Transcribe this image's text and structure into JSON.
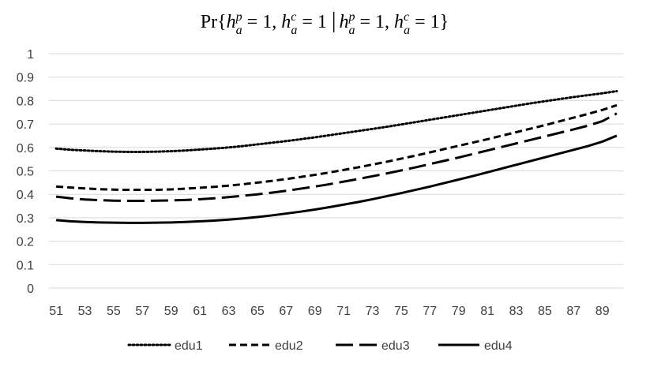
{
  "chart_data": {
    "type": "line",
    "title": "Pr{h_a^p = 1, h_a^c = 1 | h_a^p = 1, h_a^c = 1}",
    "title_parts": {
      "open": "Pr{",
      "h": "h",
      "a": "a",
      "p": "p",
      "c": "c",
      "eq1": " = 1, ",
      "eq2": " = 1 ",
      "bar": "|",
      "eq3": " = 1, ",
      "eq4": " = 1}"
    },
    "xlabel": "",
    "ylabel": "",
    "ylim": [
      0,
      1
    ],
    "y_ticks": [
      "0",
      "0.1",
      "0.2",
      "0.3",
      "0.4",
      "0.5",
      "0.6",
      "0.7",
      "0.8",
      "0.9",
      "1"
    ],
    "x": [
      51,
      52,
      53,
      54,
      55,
      56,
      57,
      58,
      59,
      60,
      61,
      62,
      63,
      64,
      65,
      66,
      67,
      68,
      69,
      70,
      71,
      72,
      73,
      74,
      75,
      76,
      77,
      78,
      79,
      80,
      81,
      82,
      83,
      84,
      85,
      86,
      87,
      88,
      89,
      90
    ],
    "x_tick_labels": [
      "51",
      "53",
      "55",
      "57",
      "59",
      "61",
      "63",
      "65",
      "67",
      "69",
      "71",
      "73",
      "75",
      "77",
      "79",
      "81",
      "83",
      "85",
      "87",
      "89"
    ],
    "grid": "horizontal",
    "legend_position": "bottom",
    "series": [
      {
        "name": "edu1",
        "style": "dotted",
        "color": "#000000",
        "values": [
          0.595,
          0.59,
          0.587,
          0.584,
          0.582,
          0.581,
          0.581,
          0.582,
          0.584,
          0.587,
          0.591,
          0.595,
          0.6,
          0.606,
          0.613,
          0.62,
          0.627,
          0.635,
          0.643,
          0.652,
          0.661,
          0.67,
          0.679,
          0.688,
          0.698,
          0.708,
          0.718,
          0.728,
          0.738,
          0.748,
          0.758,
          0.768,
          0.778,
          0.788,
          0.797,
          0.806,
          0.815,
          0.823,
          0.831,
          0.84
        ]
      },
      {
        "name": "edu2",
        "style": "short-dash",
        "color": "#000000",
        "values": [
          0.433,
          0.429,
          0.425,
          0.422,
          0.42,
          0.419,
          0.419,
          0.419,
          0.421,
          0.424,
          0.428,
          0.432,
          0.437,
          0.443,
          0.45,
          0.457,
          0.465,
          0.474,
          0.483,
          0.493,
          0.504,
          0.515,
          0.527,
          0.539,
          0.552,
          0.565,
          0.579,
          0.593,
          0.607,
          0.621,
          0.635,
          0.65,
          0.665,
          0.68,
          0.695,
          0.711,
          0.727,
          0.743,
          0.76,
          0.78
        ]
      },
      {
        "name": "edu3",
        "style": "long-dash",
        "color": "#000000",
        "values": [
          0.39,
          0.383,
          0.378,
          0.375,
          0.373,
          0.372,
          0.372,
          0.373,
          0.374,
          0.376,
          0.379,
          0.383,
          0.388,
          0.394,
          0.4,
          0.407,
          0.415,
          0.424,
          0.433,
          0.443,
          0.454,
          0.465,
          0.477,
          0.489,
          0.502,
          0.515,
          0.529,
          0.543,
          0.557,
          0.572,
          0.587,
          0.602,
          0.617,
          0.632,
          0.647,
          0.662,
          0.677,
          0.693,
          0.712,
          0.745
        ]
      },
      {
        "name": "edu4",
        "style": "solid",
        "color": "#000000",
        "values": [
          0.29,
          0.285,
          0.282,
          0.28,
          0.279,
          0.278,
          0.278,
          0.279,
          0.28,
          0.282,
          0.285,
          0.288,
          0.292,
          0.297,
          0.303,
          0.31,
          0.318,
          0.326,
          0.335,
          0.345,
          0.356,
          0.367,
          0.379,
          0.392,
          0.405,
          0.419,
          0.433,
          0.448,
          0.463,
          0.478,
          0.494,
          0.51,
          0.526,
          0.542,
          0.558,
          0.574,
          0.59,
          0.606,
          0.625,
          0.65
        ]
      }
    ]
  }
}
